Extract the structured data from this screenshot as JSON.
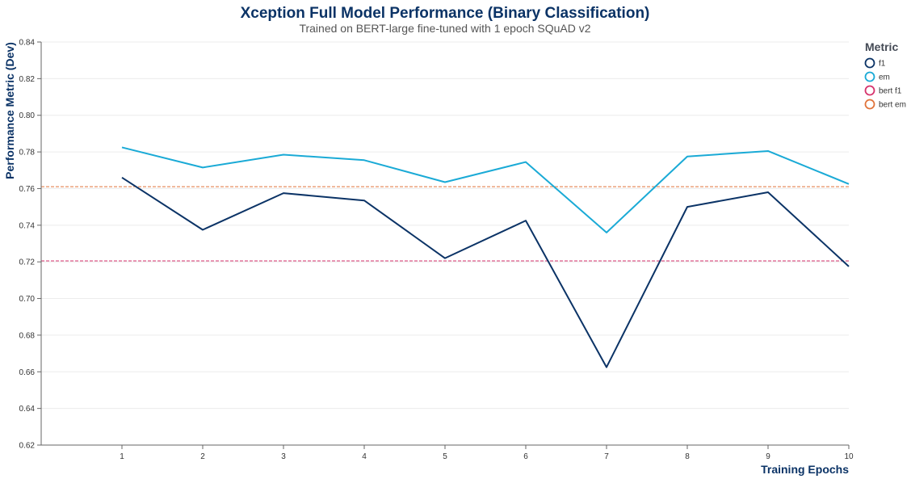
{
  "chart_data": {
    "type": "line",
    "title": "Xception Full Model Performance (Binary Classification)",
    "subtitle": "Trained on BERT-large fine-tuned with 1 epoch SQuAD v2",
    "xlabel": "Training Epochs",
    "ylabel": "Performance Metric (Dev)",
    "x": [
      1,
      2,
      3,
      4,
      5,
      6,
      7,
      8,
      9,
      10
    ],
    "xlim": [
      0,
      10
    ],
    "ylim": [
      0.62,
      0.84
    ],
    "y_ticks": [
      "0.62",
      "0.64",
      "0.66",
      "0.68",
      "0.70",
      "0.72",
      "0.74",
      "0.76",
      "0.78",
      "0.80",
      "0.82",
      "0.84"
    ],
    "x_ticks": [
      "1",
      "2",
      "3",
      "4",
      "5",
      "6",
      "7",
      "8",
      "9",
      "10"
    ],
    "grid": "horizontal",
    "legend_title": "Metric",
    "legend_position": "top-right",
    "series": [
      {
        "name": "f1",
        "color": "#0b3366",
        "style": "solid",
        "values": [
          0.766,
          0.7375,
          0.7575,
          0.7535,
          0.722,
          0.7425,
          0.6625,
          0.75,
          0.758,
          0.7175
        ]
      },
      {
        "name": "em",
        "color": "#1aaad6",
        "style": "solid",
        "values": [
          0.7825,
          0.7715,
          0.7785,
          0.7755,
          0.7635,
          0.7745,
          0.736,
          0.7775,
          0.7805,
          0.7625
        ]
      },
      {
        "name": "bert f1",
        "color": "#d6336c",
        "style": "dashed",
        "constant": 0.7205
      },
      {
        "name": "bert em",
        "color": "#e0733a",
        "style": "dashed",
        "constant": 0.761
      }
    ]
  }
}
